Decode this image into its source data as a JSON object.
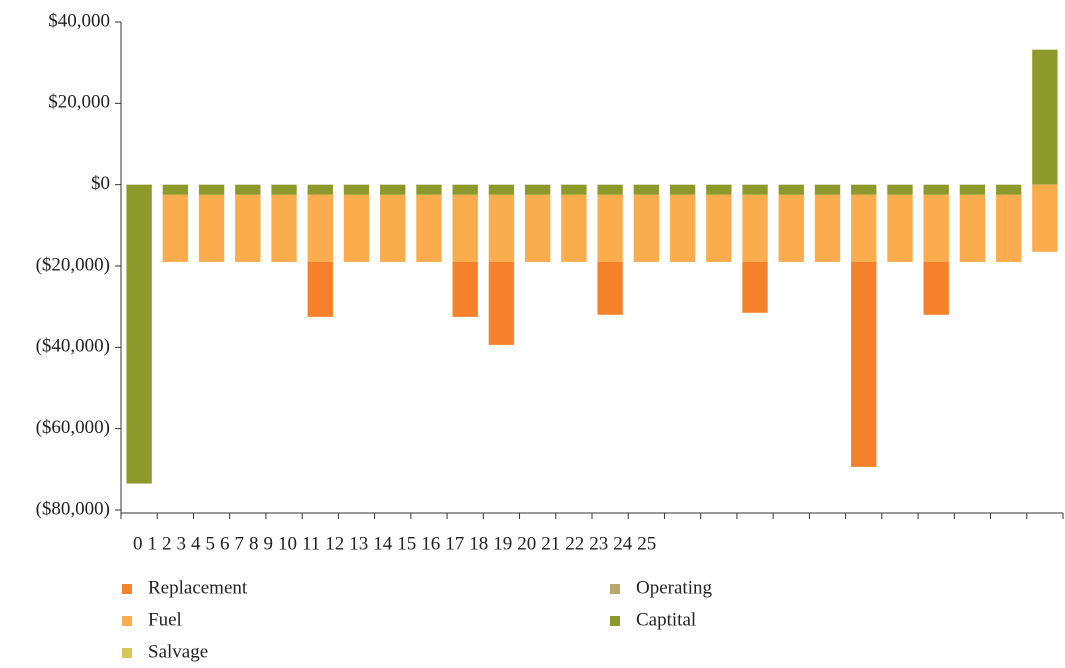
{
  "chart_data": {
    "type": "bar",
    "stacked": true,
    "categories": [
      "0",
      "1",
      "2",
      "3",
      "4",
      "5",
      "6",
      "7",
      "8",
      "9",
      "10",
      "11",
      "12",
      "13",
      "14",
      "15",
      "16",
      "17",
      "18",
      "19",
      "20",
      "21",
      "22",
      "23",
      "24",
      "25"
    ],
    "series": [
      {
        "name": "Replacement",
        "color": "#f5812a",
        "values": [
          0,
          0,
          0,
          0,
          0,
          -13500,
          0,
          0,
          0,
          -13500,
          -20400,
          0,
          0,
          -13000,
          0,
          0,
          0,
          -12500,
          0,
          0,
          -50400,
          0,
          -13000,
          0,
          0,
          0
        ]
      },
      {
        "name": "Fuel",
        "color": "#fbac4c",
        "values": [
          0,
          -16500,
          -16500,
          -16500,
          -16500,
          -16500,
          -16500,
          -16500,
          -16500,
          -16500,
          -16500,
          -16500,
          -16500,
          -16500,
          -16500,
          -16500,
          -16500,
          -16500,
          -16500,
          -16500,
          -16500,
          -16500,
          -16500,
          -16500,
          -16500,
          -16500
        ]
      },
      {
        "name": "Salvage",
        "color": "#d7c65a",
        "values": [
          0,
          0,
          0,
          0,
          0,
          0,
          0,
          0,
          0,
          0,
          0,
          0,
          0,
          0,
          0,
          0,
          0,
          0,
          0,
          0,
          0,
          0,
          0,
          0,
          0,
          0
        ]
      },
      {
        "name": "Operating",
        "color": "#b6a96a",
        "values": [
          0,
          0,
          0,
          0,
          0,
          0,
          0,
          0,
          0,
          0,
          0,
          0,
          0,
          0,
          0,
          0,
          0,
          0,
          0,
          0,
          0,
          0,
          0,
          0,
          0,
          0
        ]
      },
      {
        "name": "Captital",
        "color": "#8c9a2c",
        "values": [
          -73500,
          -2500,
          -2500,
          -2500,
          -2500,
          -2500,
          -2500,
          -2500,
          -2500,
          -2500,
          -2500,
          -2500,
          -2500,
          -2500,
          -2500,
          -2500,
          -2500,
          -2500,
          -2500,
          -2500,
          -2500,
          -2500,
          -2500,
          -2500,
          -2500,
          33200
        ]
      }
    ],
    "ylim": [
      -80000,
      40000
    ],
    "yticks": [
      {
        "value": -80000,
        "label": "($80,000)"
      },
      {
        "value": -60000,
        "label": "($60,000)"
      },
      {
        "value": -40000,
        "label": "($40,000)"
      },
      {
        "value": -20000,
        "label": "($20,000)"
      },
      {
        "value": 0,
        "label": "$0"
      },
      {
        "value": 20000,
        "label": "$20,000"
      },
      {
        "value": 40000,
        "label": "$40,000"
      }
    ],
    "legend": "bottom"
  }
}
